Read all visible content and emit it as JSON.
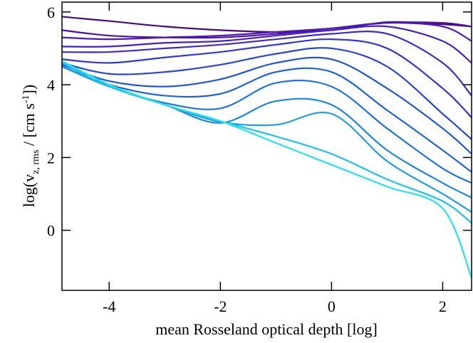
{
  "chart_data": {
    "type": "line",
    "xlabel": "mean Rosseland optical depth [log]",
    "ylabel": [
      "log(v",
      "z, rms",
      " / [cm s",
      "-1",
      "])"
    ],
    "x": [
      -4.85,
      -4,
      -3,
      -2,
      -1,
      0,
      1,
      2,
      2.52
    ],
    "xlim": [
      -4.85,
      2.52
    ],
    "ylim": [
      -1.65,
      6.27
    ],
    "xticks": [
      -4,
      -2,
      0,
      2
    ],
    "yticks": [
      0,
      2,
      4,
      6
    ],
    "series": [
      {
        "color": "#4a0a78",
        "values": [
          5.87,
          5.75,
          5.6,
          5.5,
          5.45,
          5.5,
          5.72,
          5.66,
          5.6
        ]
      },
      {
        "color": "#4f12a0",
        "values": [
          5.5,
          5.35,
          5.3,
          5.3,
          5.4,
          5.55,
          5.7,
          5.7,
          5.6
        ]
      },
      {
        "color": "#4d18b8",
        "values": [
          5.3,
          5.25,
          5.3,
          5.35,
          5.45,
          5.55,
          5.7,
          5.6,
          5.2
        ]
      },
      {
        "color": "#4420c8",
        "values": [
          5.05,
          5.05,
          5.15,
          5.2,
          5.35,
          5.5,
          5.6,
          5.2,
          4.6
        ]
      },
      {
        "color": "#3a2ad2",
        "values": [
          4.9,
          4.9,
          5.0,
          5.1,
          5.25,
          5.4,
          5.4,
          4.6,
          3.7
        ]
      },
      {
        "color": "#3036da",
        "values": [
          4.7,
          4.6,
          4.75,
          4.9,
          5.1,
          5.25,
          5.0,
          3.9,
          3.1
        ]
      },
      {
        "color": "#2844de",
        "values": [
          4.6,
          4.3,
          4.35,
          4.55,
          4.85,
          5.0,
          4.5,
          3.2,
          2.5
        ]
      },
      {
        "color": "#2252e0",
        "values": [
          4.55,
          4.1,
          3.95,
          4.15,
          4.6,
          4.7,
          3.9,
          2.8,
          2.1
        ]
      },
      {
        "color": "#1e62e2",
        "values": [
          4.5,
          4.0,
          3.7,
          3.75,
          4.35,
          4.35,
          3.3,
          2.2,
          1.6
        ]
      },
      {
        "color": "#1c74e4",
        "values": [
          4.5,
          3.95,
          3.5,
          3.35,
          4.05,
          3.95,
          2.8,
          1.7,
          1.3
        ]
      },
      {
        "color": "#1c88e6",
        "values": [
          4.5,
          3.95,
          3.45,
          2.95,
          3.55,
          3.45,
          2.2,
          1.3,
          0.9
        ]
      },
      {
        "color": "#1c9ee8",
        "values": [
          4.5,
          3.95,
          3.45,
          2.98,
          2.9,
          3.2,
          1.9,
          1.0,
          0.5
        ]
      },
      {
        "color": "#1ec2ea",
        "values": [
          4.6,
          3.95,
          3.45,
          3.0,
          2.58,
          2.1,
          1.4,
          0.8,
          0.2
        ]
      },
      {
        "color": "#22e4ec",
        "values": [
          4.65,
          4.0,
          3.45,
          3.0,
          2.4,
          1.8,
          1.2,
          0.6,
          -1.3
        ]
      }
    ]
  }
}
